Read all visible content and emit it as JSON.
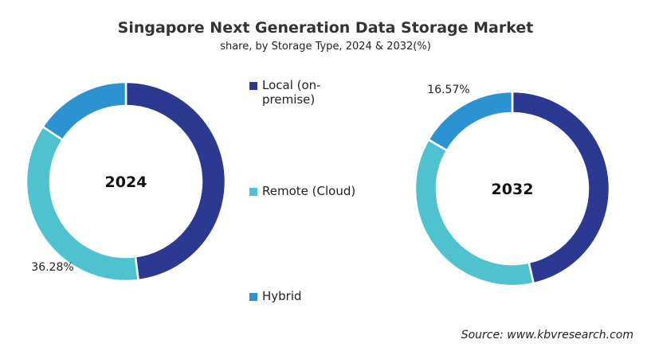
{
  "chart_data": [
    {
      "type": "pie",
      "donut": true,
      "center_label": "2024",
      "categories": [
        "Local (on-premise)",
        "Remote (Cloud)",
        "Hybrid"
      ],
      "values": [
        48.0,
        36.28,
        15.72
      ],
      "data_labels": [
        "",
        "36.28%",
        ""
      ]
    },
    {
      "type": "pie",
      "donut": true,
      "center_label": "2032",
      "categories": [
        "Local (on-premise)",
        "Remote (Cloud)",
        "Hybrid"
      ],
      "values": [
        46.5,
        36.93,
        16.57
      ],
      "data_labels": [
        "",
        "",
        "16.57%"
      ]
    }
  ],
  "title": "Singapore Next Generation Data Storage Market",
  "subtitle": "share, by Storage Type, 2024 & 2032(%)",
  "legend": {
    "placement": "center",
    "items": [
      {
        "label_line1": "Local (on-",
        "label_line2": "premise)",
        "color": "#2B3990"
      },
      {
        "label": "Remote (Cloud)",
        "color": "#4EC3CF"
      },
      {
        "label": "Hybrid",
        "color": "#2A93D0"
      }
    ]
  },
  "colors": [
    "#2B3990",
    "#4EC3CF",
    "#2A93D0"
  ],
  "source": "Source: www.kbvresearch.com"
}
